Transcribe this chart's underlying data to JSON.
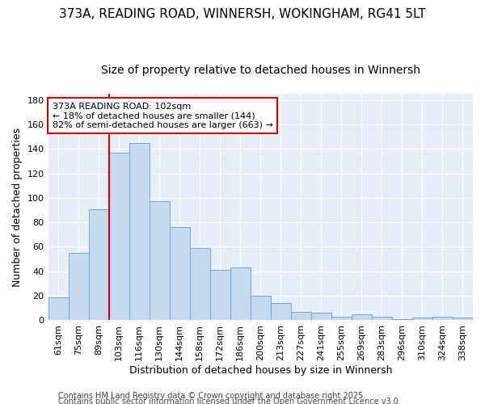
{
  "title1": "373A, READING ROAD, WINNERSH, WOKINGHAM, RG41 5LT",
  "title2": "Size of property relative to detached houses in Winnersh",
  "xlabel": "Distribution of detached houses by size in Winnersh",
  "ylabel": "Number of detached properties",
  "categories": [
    "61sqm",
    "75sqm",
    "89sqm",
    "103sqm",
    "116sqm",
    "130sqm",
    "144sqm",
    "158sqm",
    "172sqm",
    "186sqm",
    "200sqm",
    "213sqm",
    "227sqm",
    "241sqm",
    "255sqm",
    "269sqm",
    "283sqm",
    "296sqm",
    "310sqm",
    "324sqm",
    "338sqm"
  ],
  "values": [
    19,
    55,
    91,
    137,
    145,
    97,
    76,
    59,
    41,
    43,
    20,
    14,
    7,
    6,
    3,
    5,
    3,
    1,
    2,
    3,
    2
  ],
  "bar_color": "#c5d9f1",
  "bar_edge_color": "#6fa8d6",
  "bg_color": "#ffffff",
  "plot_bg_color": "#e8eef8",
  "grid_color": "#ffffff",
  "vline_x_idx": 3,
  "vline_color": "#cc0000",
  "annotation_text": "373A READING ROAD: 102sqm\n← 18% of detached houses are smaller (144)\n82% of semi-detached houses are larger (663) →",
  "annotation_box_color": "#ffffff",
  "annotation_box_edge": "#cc0000",
  "ylim": [
    0,
    185
  ],
  "yticks": [
    0,
    20,
    40,
    60,
    80,
    100,
    120,
    140,
    160,
    180
  ],
  "footer1": "Contains HM Land Registry data © Crown copyright and database right 2025.",
  "footer2": "Contains public sector information licensed under the Open Government Licence v3.0.",
  "title1_fontsize": 11,
  "title2_fontsize": 10,
  "axis_label_fontsize": 9,
  "tick_fontsize": 8,
  "annotation_fontsize": 8,
  "footer_fontsize": 7
}
